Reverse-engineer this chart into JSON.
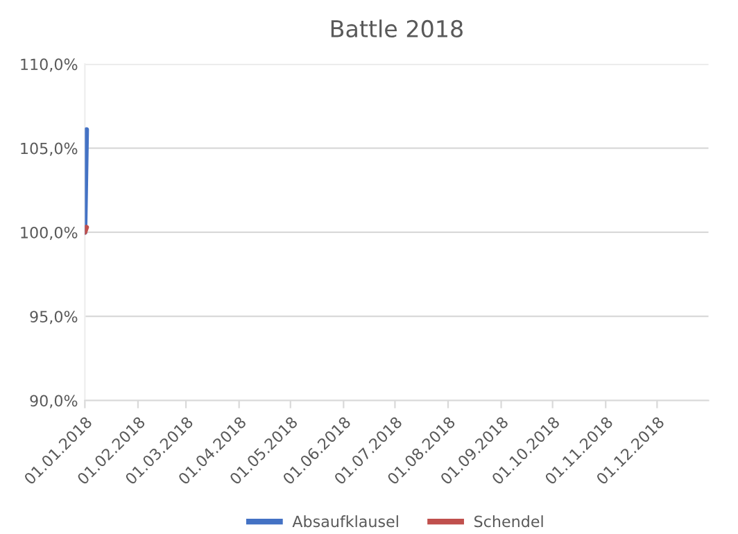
{
  "chart_data": {
    "type": "line",
    "title": "Battle 2018",
    "series": [
      {
        "name": "Absaufklausel",
        "color": "#4472c4",
        "x": [
          "2018-01-01",
          "2018-01-02"
        ],
        "values": [
          100.0,
          106.1
        ]
      },
      {
        "name": "Schendel",
        "color": "#c0504d",
        "x": [
          "2018-01-01",
          "2018-01-02"
        ],
        "values": [
          100.0,
          100.3
        ]
      }
    ],
    "xlim": [
      "2018-01-01",
      "2018-12-31"
    ],
    "xticks": [
      {
        "value": "2018-01-01",
        "label": "01.01.2018"
      },
      {
        "value": "2018-02-01",
        "label": "01.02.2018"
      },
      {
        "value": "2018-03-01",
        "label": "01.03.2018"
      },
      {
        "value": "2018-04-01",
        "label": "01.04.2018"
      },
      {
        "value": "2018-05-01",
        "label": "01.05.2018"
      },
      {
        "value": "2018-06-01",
        "label": "01.06.2018"
      },
      {
        "value": "2018-07-01",
        "label": "01.07.2018"
      },
      {
        "value": "2018-08-01",
        "label": "01.08.2018"
      },
      {
        "value": "2018-09-01",
        "label": "01.09.2018"
      },
      {
        "value": "2018-10-01",
        "label": "01.10.2018"
      },
      {
        "value": "2018-11-01",
        "label": "01.11.2018"
      },
      {
        "value": "2018-12-01",
        "label": "01.12.2018"
      }
    ],
    "ylim": [
      90,
      110
    ],
    "yticks": [
      {
        "value": 90,
        "label": "90,0%"
      },
      {
        "value": 95,
        "label": "95,0%"
      },
      {
        "value": 100,
        "label": "100,0%"
      },
      {
        "value": 105,
        "label": "105,0%"
      },
      {
        "value": 110,
        "label": "110,0%"
      }
    ],
    "grid": "y",
    "legend": "bottom",
    "marker": "none",
    "line_style": "solid"
  }
}
